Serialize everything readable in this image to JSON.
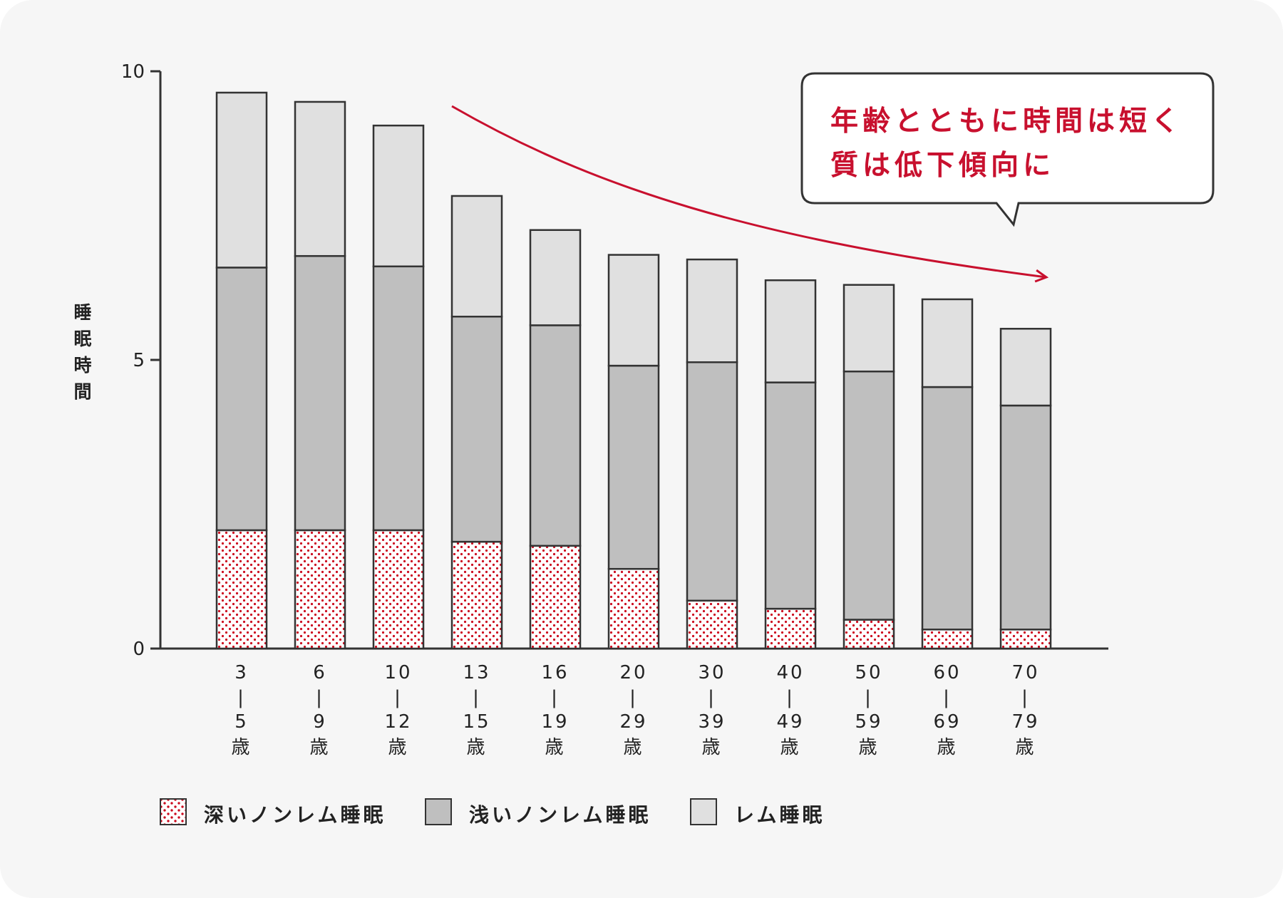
{
  "chart_data": {
    "type": "bar",
    "stacked": true,
    "ylabel": "睡眠時間",
    "ylim": [
      0,
      10
    ],
    "yticks": [
      "0",
      "5",
      "10"
    ],
    "categories": [
      [
        "3",
        "|",
        "5",
        "歳"
      ],
      [
        "6",
        "|",
        "9",
        "歳"
      ],
      [
        "10",
        "|",
        "12",
        "歳"
      ],
      [
        "13",
        "|",
        "15",
        "歳"
      ],
      [
        "16",
        "|",
        "19",
        "歳"
      ],
      [
        "20",
        "|",
        "29",
        "歳"
      ],
      [
        "30",
        "|",
        "39",
        "歳"
      ],
      [
        "40",
        "|",
        "49",
        "歳"
      ],
      [
        "50",
        "|",
        "59",
        "歳"
      ],
      [
        "60",
        "|",
        "69",
        "歳"
      ],
      [
        "70",
        "|",
        "79",
        "歳"
      ]
    ],
    "series": [
      {
        "name": "深いノンレム睡眠",
        "values": [
          2.05,
          2.05,
          2.05,
          1.85,
          1.78,
          1.38,
          0.83,
          0.69,
          0.5,
          0.33,
          0.33
        ]
      },
      {
        "name": "浅いノンレム睡眠",
        "values": [
          4.55,
          4.75,
          4.57,
          3.9,
          3.82,
          3.52,
          4.13,
          3.92,
          4.3,
          4.2,
          3.88
        ]
      },
      {
        "name": "レム睡眠",
        "values": [
          3.03,
          2.67,
          2.44,
          2.09,
          1.65,
          1.92,
          1.78,
          1.77,
          1.5,
          1.52,
          1.33
        ]
      }
    ],
    "legend_position": "bottom-left",
    "annotation": {
      "text": "年齢とともに時間は短く\n質は低下傾向に",
      "arrow": "down-right"
    }
  },
  "colors": {
    "background": "#f6f6f6",
    "deep": "#cc0a1e",
    "light": "#bfbfbf",
    "rem": "#e0e0e0",
    "stroke": "#333333",
    "accent": "#c8102e"
  }
}
